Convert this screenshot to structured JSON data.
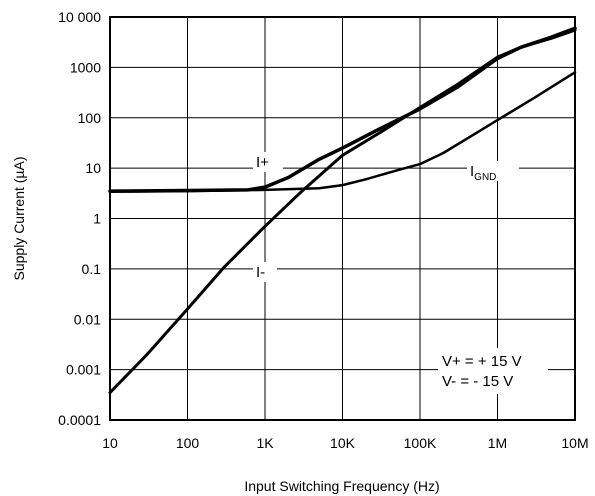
{
  "chart_data": {
    "type": "line",
    "x_scale": "log",
    "y_scale": "log",
    "xlabel": "Input Switching Frequency (Hz)",
    "ylabel": "Supply Current (µA)",
    "xlim": [
      10,
      10000000
    ],
    "ylim": [
      0.0001,
      10000
    ],
    "grid": true,
    "x_ticks": [
      {
        "value": 10,
        "label": "10"
      },
      {
        "value": 100,
        "label": "100"
      },
      {
        "value": 1000,
        "label": "1K"
      },
      {
        "value": 10000,
        "label": "10K"
      },
      {
        "value": 100000,
        "label": "100K"
      },
      {
        "value": 1000000,
        "label": "1M"
      },
      {
        "value": 10000000,
        "label": "10M"
      }
    ],
    "y_ticks": [
      {
        "value": 10000,
        "label": "10 000"
      },
      {
        "value": 1000,
        "label": "1000"
      },
      {
        "value": 100,
        "label": "100"
      },
      {
        "value": 10,
        "label": "10"
      },
      {
        "value": 1,
        "label": "1"
      },
      {
        "value": 0.1,
        "label": "0.1"
      },
      {
        "value": 0.01,
        "label": "0.01"
      },
      {
        "value": 0.001,
        "label": "0.001"
      },
      {
        "value": 0.0001,
        "label": "0.0001"
      }
    ],
    "series": [
      {
        "name": "I+",
        "label_main": "I+",
        "label_sub": "",
        "x": [
          10,
          100,
          600,
          1000,
          2000,
          5000,
          10000,
          30000,
          100000,
          300000,
          1000000,
          2000000,
          5000000,
          10000000
        ],
        "y": [
          3.5,
          3.6,
          3.7,
          4.2,
          6.5,
          15,
          25,
          60,
          150,
          400,
          1500,
          2500,
          4000,
          6000
        ]
      },
      {
        "name": "I-",
        "label_main": "I-",
        "label_sub": "",
        "x": [
          10,
          30,
          100,
          300,
          1000,
          3000,
          10000,
          30000,
          100000,
          300000,
          1000000,
          2000000,
          5000000,
          10000000
        ],
        "y": [
          0.00035,
          0.002,
          0.016,
          0.11,
          0.7,
          3.5,
          18,
          50,
          160,
          450,
          1600,
          2500,
          3800,
          5500
        ]
      },
      {
        "name": "I_GND",
        "label_main": "I",
        "label_sub": "GND",
        "x": [
          10,
          100,
          1000,
          5000,
          10000,
          20000,
          50000,
          100000,
          200000,
          1000000,
          3000000,
          10000000
        ],
        "y": [
          3.4,
          3.5,
          3.7,
          4,
          4.6,
          6,
          9,
          12,
          20,
          90,
          250,
          800
        ]
      }
    ],
    "annotations": [
      "V+ =  + 15 V",
      "V- = - 15 V"
    ]
  }
}
